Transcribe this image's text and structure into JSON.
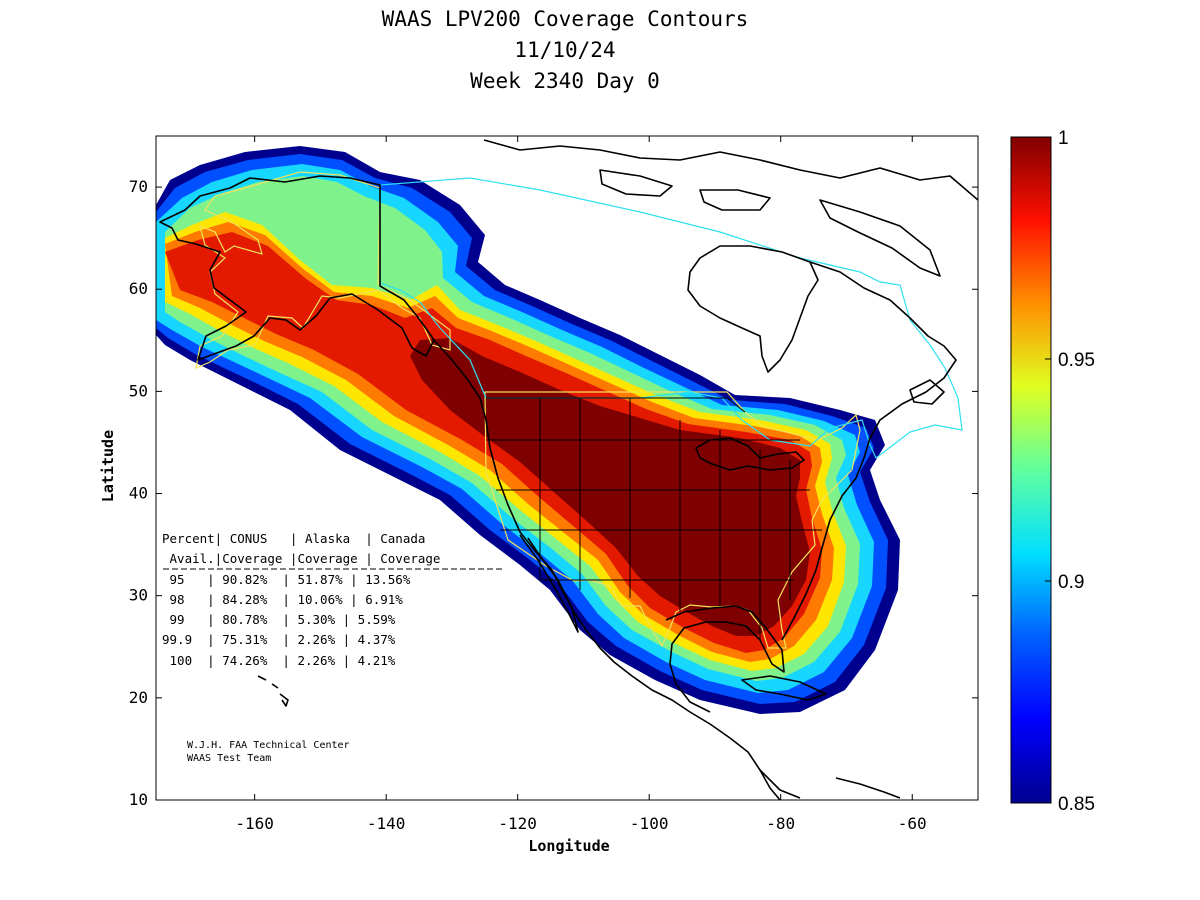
{
  "title": {
    "line1": "WAAS LPV200 Coverage Contours",
    "line2": "11/10/24",
    "line3": "Week 2340 Day 0"
  },
  "axes": {
    "xlabel": "Longitude",
    "ylabel": "Latitude",
    "xlim": [
      -175,
      -50
    ],
    "ylim": [
      10,
      75
    ],
    "xticks": [
      -160,
      -140,
      -120,
      -100,
      -80,
      -60
    ],
    "yticks": [
      10,
      20,
      30,
      40,
      50,
      60,
      70
    ]
  },
  "colorbar": {
    "range": [
      0.85,
      1
    ],
    "ticks": [
      "1",
      "0.95",
      "0.9",
      "0.85"
    ],
    "colormap": "jet"
  },
  "table": {
    "header1": "Percent| CONUS   | Alaska  | Canada",
    "header2": " Avail.|Coverage |Coverage | Coverage",
    "rows": [
      " 95   | 90.82%  | 51.87% | 13.56%",
      " 98   | 84.28%  | 10.06% | 6.91%",
      " 99   | 80.78%  | 5.30% | 5.59%",
      "99.9  | 75.31%  | 2.26% | 4.37%",
      " 100  | 74.26%  | 2.26% | 4.21%"
    ]
  },
  "credit": {
    "line1": "W.J.H. FAA Technical Center",
    "line2": "WAAS Test Team"
  },
  "colors": {
    "max": "#7f0000",
    "red": "#e31a00",
    "orange": "#ff7a00",
    "yellow": "#ffe600",
    "green": "#7ff28c",
    "cyan": "#19d3ff",
    "blue": "#0047ff",
    "min": "#00008f",
    "service_area": "#f2e35a",
    "canada_area": "#2fe0ef"
  }
}
